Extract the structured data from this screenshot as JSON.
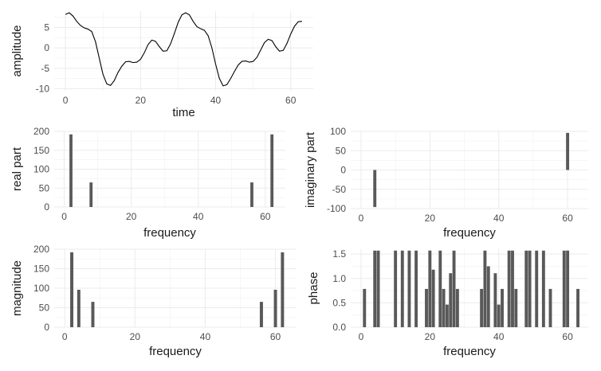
{
  "colors": {
    "bar": "#595959",
    "line": "#000000",
    "grid": "#ebebeb",
    "background": "#ffffff"
  },
  "chart_data": [
    {
      "id": "time",
      "type": "line",
      "xlabel": "time",
      "ylabel": "amplitude",
      "xlim": [
        -3,
        66
      ],
      "ylim": [
        -10.5,
        9
      ],
      "xticks": [
        0,
        20,
        40,
        60
      ],
      "yticks": [
        -10,
        -5,
        0,
        5
      ],
      "grid": true,
      "x": [
        0,
        1,
        2,
        3,
        4,
        5,
        6,
        7,
        8,
        9,
        10,
        11,
        12,
        13,
        14,
        15,
        16,
        17,
        18,
        19,
        20,
        21,
        22,
        23,
        24,
        25,
        26,
        27,
        28,
        29,
        30,
        31,
        32,
        33,
        34,
        35,
        36,
        37,
        38,
        39,
        40,
        41,
        42,
        43,
        44,
        45,
        46,
        47,
        48,
        49,
        50,
        51,
        52,
        53,
        54,
        55,
        56,
        57,
        58,
        59,
        60,
        61,
        62,
        63
      ],
      "y": [
        8.2,
        8.6,
        7.8,
        6.5,
        5.5,
        4.9,
        4.6,
        4.0,
        1.5,
        -2.5,
        -6.5,
        -8.8,
        -9.2,
        -8.0,
        -6.0,
        -4.5,
        -3.4,
        -3.3,
        -3.6,
        -3.5,
        -2.8,
        -1.2,
        0.8,
        1.9,
        1.6,
        0.3,
        -0.8,
        -0.7,
        1.0,
        3.5,
        6.2,
        8.1,
        8.6,
        8.1,
        6.5,
        5.2,
        4.7,
        4.3,
        3.0,
        0.0,
        -4.0,
        -7.5,
        -9.3,
        -9.0,
        -7.5,
        -5.8,
        -4.2,
        -3.3,
        -3.2,
        -3.5,
        -3.3,
        -2.3,
        -0.5,
        1.3,
        2.1,
        1.8,
        0.3,
        -0.8,
        -0.6,
        1.1,
        3.4,
        5.3,
        6.4,
        6.5
      ]
    },
    {
      "id": "real",
      "type": "bar",
      "xlabel": "frequency",
      "ylabel": "real part",
      "xlim": [
        -3,
        66
      ],
      "ylim": [
        0,
        200
      ],
      "xticks": [
        0,
        20,
        40,
        60
      ],
      "yticks": [
        0,
        50,
        100,
        150,
        200
      ],
      "grid": true,
      "x": [
        2,
        8,
        56,
        62
      ],
      "values": [
        192,
        65,
        65,
        192
      ]
    },
    {
      "id": "imag",
      "type": "bar",
      "xlabel": "frequency",
      "ylabel": "imaginary part",
      "xlim": [
        -3,
        66
      ],
      "ylim": [
        -100,
        100
      ],
      "xticks": [
        0,
        20,
        40,
        60
      ],
      "yticks": [
        -100,
        -50,
        0,
        50,
        100
      ],
      "grid": true,
      "x": [
        4,
        60
      ],
      "values": [
        -96,
        96
      ]
    },
    {
      "id": "mag",
      "type": "bar",
      "xlabel": "frequency",
      "ylabel": "magnitude",
      "xlim": [
        -3,
        66
      ],
      "ylim": [
        0,
        200
      ],
      "xticks": [
        0,
        20,
        40,
        60
      ],
      "yticks": [
        0,
        50,
        100,
        150,
        200
      ],
      "grid": true,
      "x": [
        2,
        4,
        8,
        56,
        60,
        62
      ],
      "values": [
        192,
        96,
        65,
        65,
        96,
        192
      ]
    },
    {
      "id": "phase",
      "type": "bar",
      "xlabel": "frequency",
      "ylabel": "phase",
      "xlim": [
        -3,
        66
      ],
      "ylim": [
        0,
        1.6
      ],
      "xticks": [
        0,
        20,
        40,
        60
      ],
      "yticks": [
        0.0,
        0.5,
        1.0,
        1.5
      ],
      "ytick_labels": [
        "0.0",
        "0.5",
        "1.0",
        "1.5"
      ],
      "grid": true,
      "x": [
        1,
        4,
        5,
        10,
        12,
        14,
        16,
        19,
        20,
        21,
        23,
        24,
        25,
        26,
        27,
        28,
        35,
        36,
        37,
        39,
        40,
        41,
        43,
        44,
        45,
        48,
        49,
        51,
        53,
        55,
        59,
        60,
        63
      ],
      "values": [
        0.785,
        1.571,
        1.571,
        1.571,
        1.571,
        1.571,
        1.571,
        0.785,
        1.571,
        1.18,
        1.571,
        0.785,
        0.464,
        1.107,
        1.571,
        0.785,
        0.785,
        1.571,
        1.249,
        1.107,
        0.464,
        0.785,
        1.571,
        1.571,
        0.785,
        1.571,
        1.571,
        1.571,
        1.571,
        0.785,
        1.571,
        1.571,
        0.785
      ]
    }
  ]
}
